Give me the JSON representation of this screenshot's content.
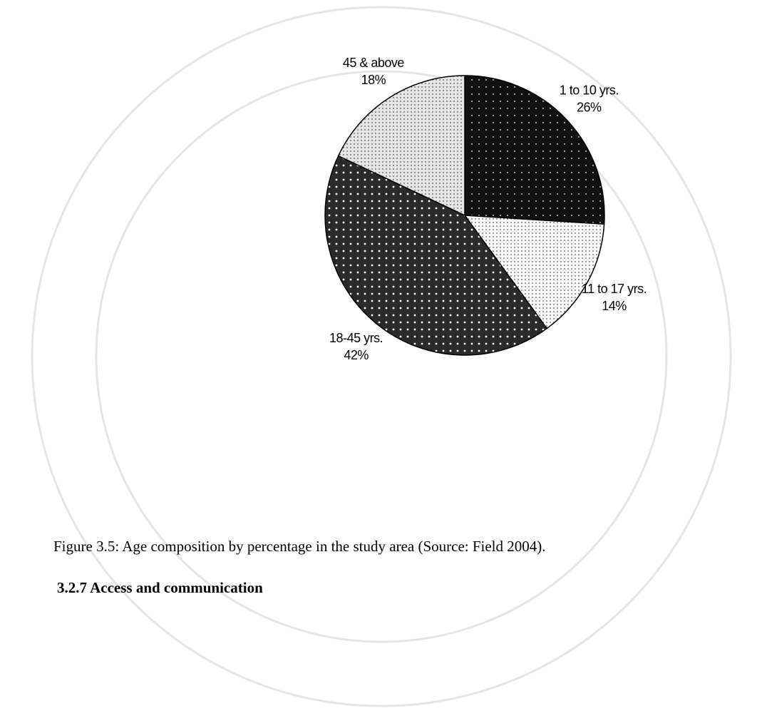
{
  "chart_data": {
    "type": "pie",
    "categories": [
      "1 to 10 yrs.",
      "11 to 17 yrs.",
      "18-45 yrs.",
      "45 & above"
    ],
    "values": [
      26,
      14,
      42,
      18
    ],
    "value_labels": [
      "26%",
      "14%",
      "42%",
      "18%"
    ],
    "colors": [
      "#111111",
      "#ffffff",
      "#2a2a2a",
      "#e6e6e6"
    ]
  },
  "caption": "Figure 3.5:  Age composition by percentage in the study area (Source: Field 2004).",
  "heading": "3.2.7 Access and communication"
}
